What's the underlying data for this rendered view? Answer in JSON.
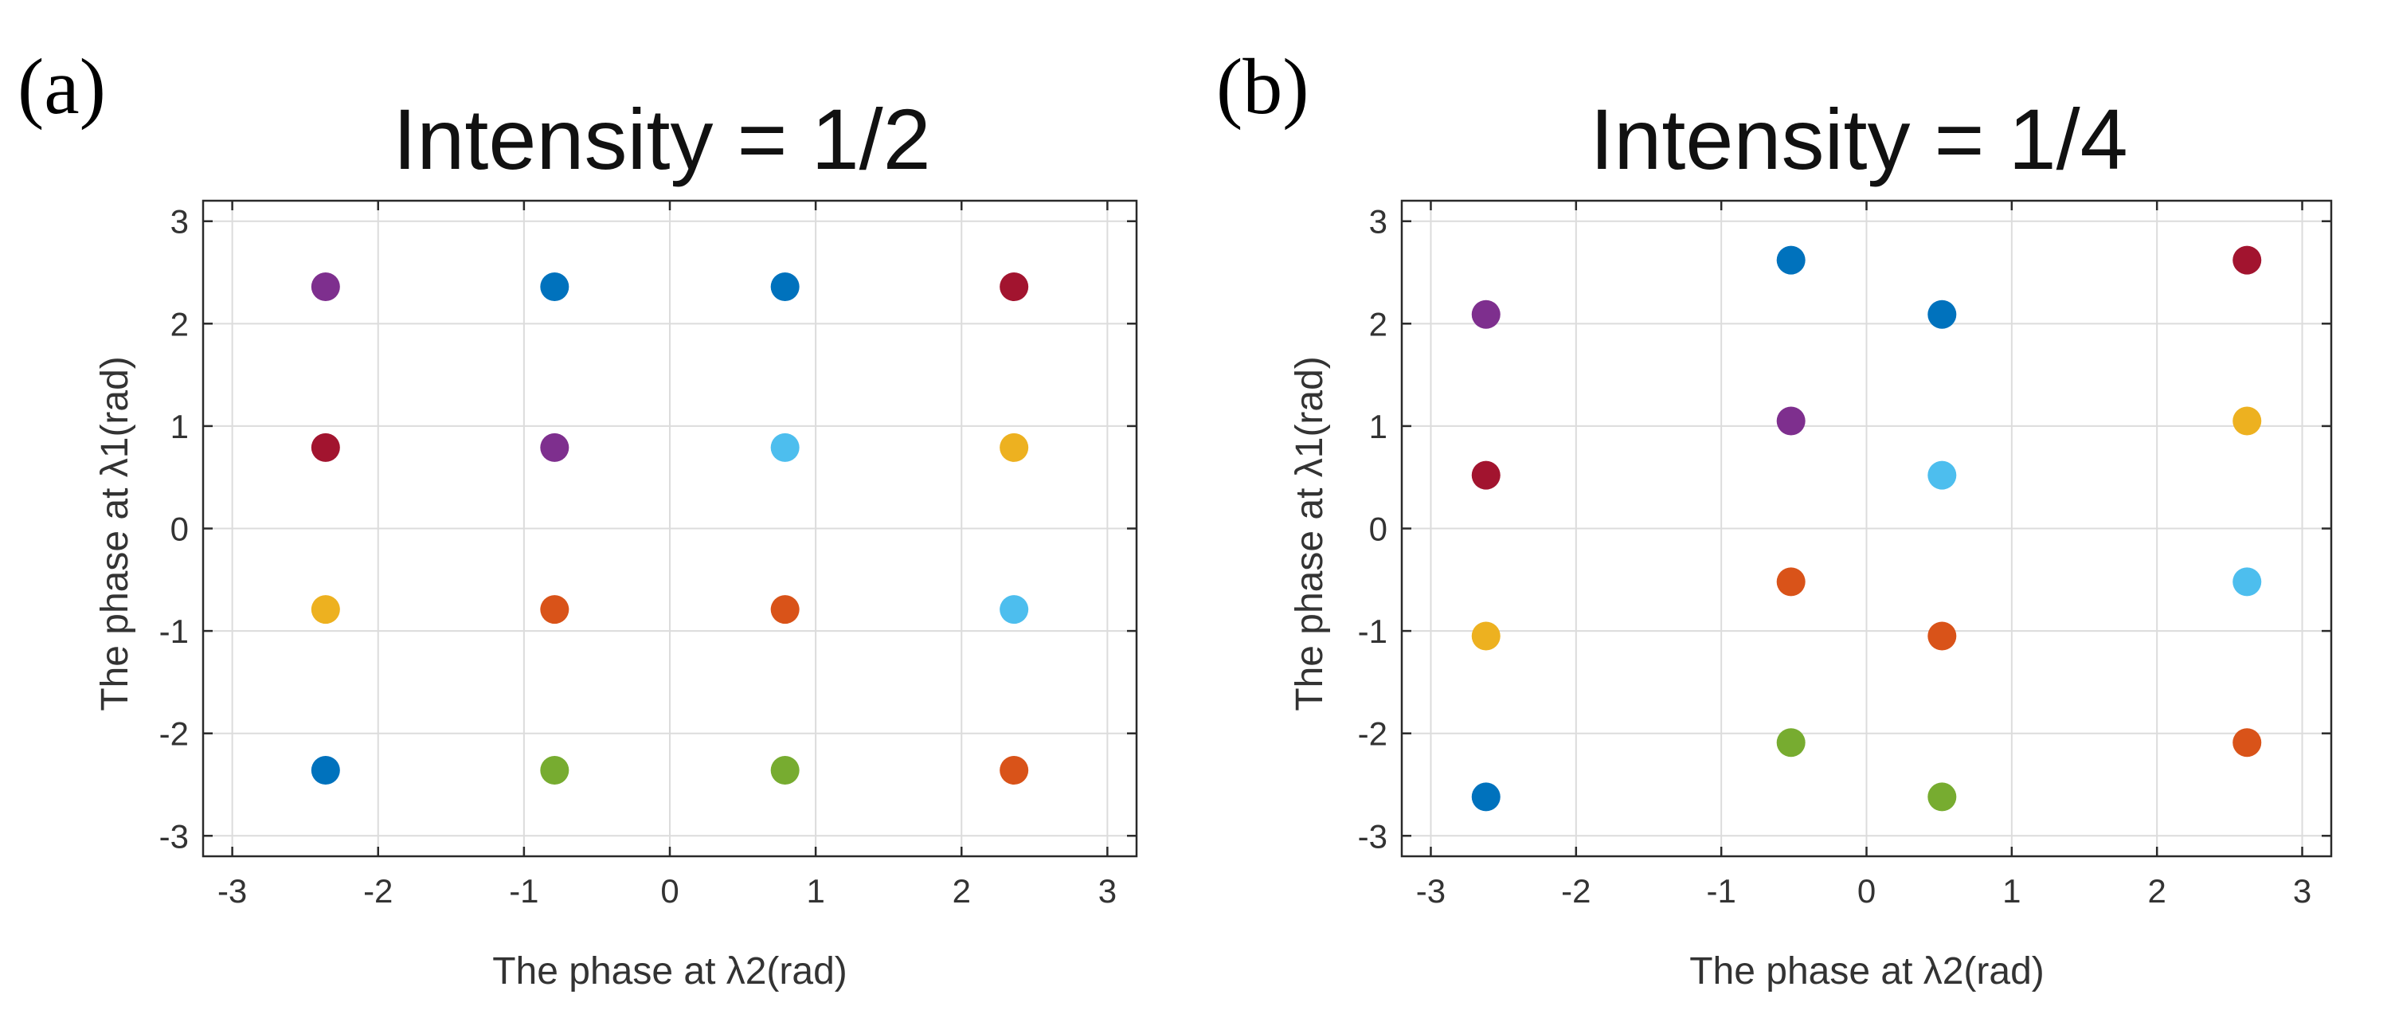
{
  "chart_data": [
    {
      "panel_label": "(a)",
      "type": "scatter",
      "title": "Intensity = 1/2",
      "xlabel": "The phase at λ2(rad)",
      "ylabel": "The phase at λ1(rad)",
      "xlim": [
        -3.2,
        3.2
      ],
      "ylim": [
        -3.2,
        3.2
      ],
      "xticks": [
        -3,
        -2,
        -1,
        0,
        1,
        2,
        3
      ],
      "yticks": [
        -3,
        -2,
        -1,
        0,
        1,
        2,
        3
      ],
      "grid": true,
      "points": [
        {
          "x": -2.36,
          "y": 2.36,
          "color": "#7E2F8E"
        },
        {
          "x": -0.79,
          "y": 2.36,
          "color": "#0072BD"
        },
        {
          "x": 0.79,
          "y": 2.36,
          "color": "#0072BD"
        },
        {
          "x": 2.36,
          "y": 2.36,
          "color": "#A2142F"
        },
        {
          "x": -2.36,
          "y": 0.79,
          "color": "#A2142F"
        },
        {
          "x": -0.79,
          "y": 0.79,
          "color": "#7E2F8E"
        },
        {
          "x": 0.79,
          "y": 0.79,
          "color": "#4DBEEE"
        },
        {
          "x": 2.36,
          "y": 0.79,
          "color": "#EDB120"
        },
        {
          "x": -2.36,
          "y": -0.79,
          "color": "#EDB120"
        },
        {
          "x": -0.79,
          "y": -0.79,
          "color": "#D95319"
        },
        {
          "x": 0.79,
          "y": -0.79,
          "color": "#D95319"
        },
        {
          "x": 2.36,
          "y": -0.79,
          "color": "#4DBEEE"
        },
        {
          "x": -2.36,
          "y": -2.36,
          "color": "#0072BD"
        },
        {
          "x": -0.79,
          "y": -2.36,
          "color": "#77AC30"
        },
        {
          "x": 0.79,
          "y": -2.36,
          "color": "#77AC30"
        },
        {
          "x": 2.36,
          "y": -2.36,
          "color": "#D95319"
        }
      ]
    },
    {
      "panel_label": "(b)",
      "type": "scatter",
      "title": "Intensity = 1/4",
      "xlabel": "The phase at λ2(rad)",
      "ylabel": "The phase at λ1(rad)",
      "xlim": [
        -3.2,
        3.2
      ],
      "ylim": [
        -3.2,
        3.2
      ],
      "xticks": [
        -3,
        -2,
        -1,
        0,
        1,
        2,
        3
      ],
      "yticks": [
        -3,
        -2,
        -1,
        0,
        1,
        2,
        3
      ],
      "grid": true,
      "points": [
        {
          "x": -2.62,
          "y": 2.09,
          "color": "#7E2F8E"
        },
        {
          "x": -2.62,
          "y": 0.52,
          "color": "#A2142F"
        },
        {
          "x": -2.62,
          "y": -1.05,
          "color": "#EDB120"
        },
        {
          "x": -2.62,
          "y": -2.62,
          "color": "#0072BD"
        },
        {
          "x": -0.52,
          "y": 2.62,
          "color": "#0072BD"
        },
        {
          "x": -0.52,
          "y": 1.05,
          "color": "#7E2F8E"
        },
        {
          "x": -0.52,
          "y": -0.52,
          "color": "#D95319"
        },
        {
          "x": -0.52,
          "y": -2.09,
          "color": "#77AC30"
        },
        {
          "x": 0.52,
          "y": 2.09,
          "color": "#0072BD"
        },
        {
          "x": 0.52,
          "y": 0.52,
          "color": "#4DBEEE"
        },
        {
          "x": 0.52,
          "y": -1.05,
          "color": "#D95319"
        },
        {
          "x": 0.52,
          "y": -2.62,
          "color": "#77AC30"
        },
        {
          "x": 2.62,
          "y": 2.62,
          "color": "#A2142F"
        },
        {
          "x": 2.62,
          "y": 1.05,
          "color": "#EDB120"
        },
        {
          "x": 2.62,
          "y": -0.52,
          "color": "#4DBEEE"
        },
        {
          "x": 2.62,
          "y": -2.09,
          "color": "#D95319"
        }
      ]
    }
  ]
}
